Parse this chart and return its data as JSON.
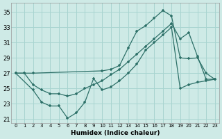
{
  "xlabel": "Humidex (Indice chaleur)",
  "bg_color": "#ceeae6",
  "grid_color": "#a8d4d0",
  "line_color": "#2d7068",
  "xlim": [
    -0.5,
    23.5
  ],
  "ylim": [
    20.5,
    36.2
  ],
  "xticks": [
    0,
    1,
    2,
    3,
    4,
    5,
    6,
    7,
    8,
    9,
    10,
    11,
    12,
    13,
    14,
    15,
    16,
    17,
    18,
    19,
    20,
    21,
    22,
    23
  ],
  "yticks": [
    21,
    23,
    25,
    27,
    29,
    31,
    33,
    35
  ],
  "line1_x": [
    0,
    1,
    2,
    10,
    11,
    12,
    13,
    14,
    15,
    16,
    17,
    18,
    19,
    20,
    21,
    22,
    23
  ],
  "line1_y": [
    27.0,
    27.0,
    27.0,
    27.3,
    27.5,
    28.0,
    30.3,
    32.5,
    33.2,
    34.2,
    35.2,
    34.5,
    29.0,
    28.9,
    29.0,
    27.0,
    26.2
  ],
  "line2_x": [
    0,
    1,
    2,
    3,
    4,
    5,
    6,
    7,
    8,
    9,
    10,
    11,
    12,
    13,
    14,
    15,
    16,
    17,
    18,
    19,
    20,
    21,
    22,
    23
  ],
  "line2_y": [
    27.0,
    27.0,
    25.5,
    24.8,
    24.3,
    24.3,
    24.0,
    24.3,
    25.0,
    25.5,
    26.0,
    26.8,
    27.5,
    28.5,
    29.5,
    30.5,
    31.5,
    32.5,
    33.5,
    31.5,
    32.3,
    29.2,
    26.2,
    26.2
  ],
  "line3_x": [
    0,
    2,
    3,
    4,
    5,
    6,
    7,
    8,
    9,
    10,
    11,
    12,
    13,
    14,
    15,
    16,
    17,
    18,
    19,
    20,
    21,
    22,
    23
  ],
  "line3_y": [
    27.0,
    24.8,
    23.2,
    22.7,
    22.7,
    21.1,
    21.8,
    23.2,
    26.3,
    24.8,
    25.2,
    26.0,
    27.0,
    28.2,
    30.0,
    31.0,
    32.0,
    33.0,
    25.0,
    25.5,
    25.8,
    26.0,
    26.2
  ]
}
